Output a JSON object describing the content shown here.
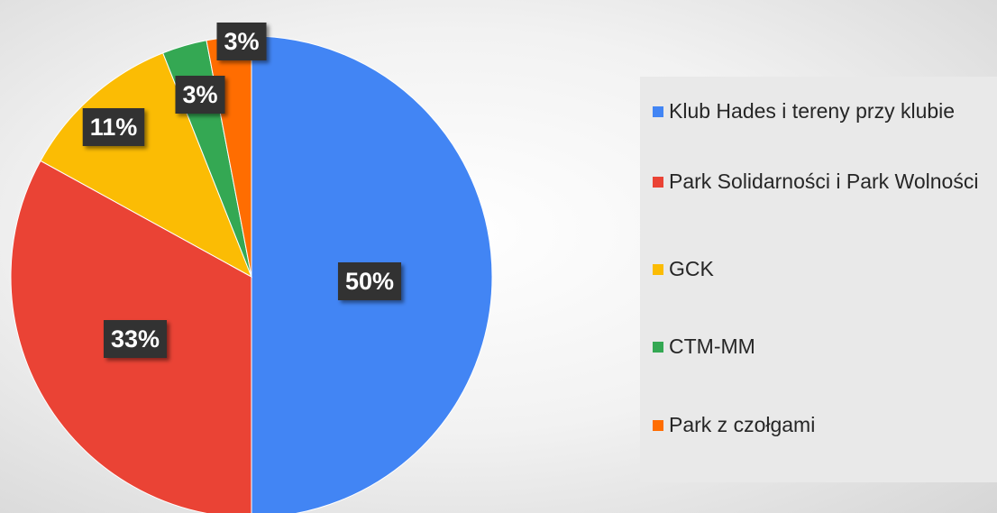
{
  "chart_data": {
    "type": "pie",
    "categories": [
      "Klub Hades i tereny przy klubie",
      "Park Solidarności i Park Wolności",
      "GCK",
      "CTM-MM",
      "Park z czołgami"
    ],
    "values": [
      50,
      33,
      11,
      3,
      3
    ],
    "value_labels": [
      "50%",
      "33%",
      "11%",
      "3%",
      "3%"
    ],
    "colors": [
      "#4285f4",
      "#ea4335",
      "#fbbc04",
      "#34a853",
      "#ff6d01"
    ],
    "legend": "right"
  }
}
